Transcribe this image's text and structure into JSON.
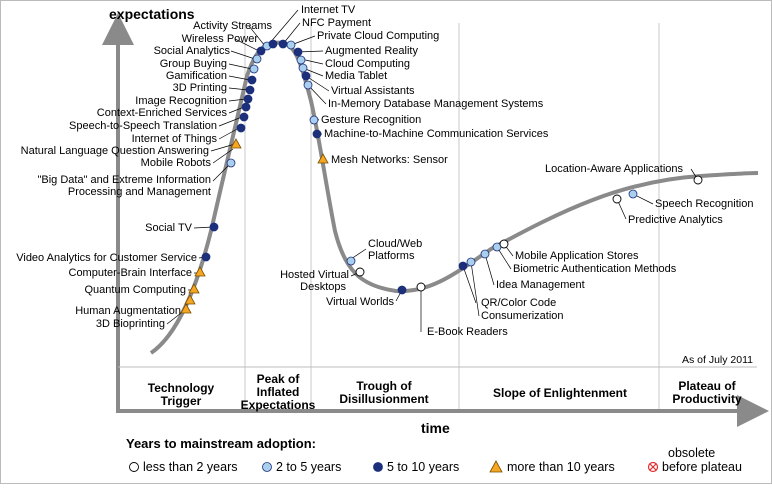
{
  "axes": {
    "y_title": "expectations",
    "x_title": "time"
  },
  "as_of": "As of July 2011",
  "phases": [
    {
      "lines": [
        "Technology",
        "Trigger"
      ]
    },
    {
      "lines": [
        "Peak of",
        "Inflated",
        "Expectations"
      ]
    },
    {
      "lines": [
        "Trough of",
        "Disillusionment"
      ]
    },
    {
      "lines": [
        "Slope of Enlightenment"
      ]
    },
    {
      "lines": [
        "Plateau of",
        "Productivity"
      ]
    }
  ],
  "legend": {
    "title": "Years to mainstream adoption:",
    "items": [
      {
        "label": "less than 2 years",
        "marker": "white-circle"
      },
      {
        "label": "2 to 5 years",
        "marker": "lightblue-circle"
      },
      {
        "label": "5 to 10 years",
        "marker": "darkblue-circle"
      },
      {
        "label": "more than 10 years",
        "marker": "orange-triangle"
      },
      {
        "label_lines": [
          "obsolete",
          "before plateau"
        ],
        "marker": "red-x-circle"
      }
    ]
  },
  "colors": {
    "curve": "#8a8a8a",
    "axis": "#8a8a8a",
    "less_than_2": "#ffffff",
    "two_to_5": "#a9cfee",
    "five_to_10": "#1c2f7a",
    "more_than_10": "#f5a623",
    "obsolete": "#e03030"
  },
  "technologies": [
    {
      "lines": [
        "Activity Streams"
      ],
      "years": "2 to 5 years"
    },
    {
      "lines": [
        "Wireless Power"
      ],
      "years": "5 to 10 years"
    },
    {
      "lines": [
        "Social Analytics"
      ],
      "years": "2 to 5 years"
    },
    {
      "lines": [
        "Group Buying"
      ],
      "years": "2 to 5 years"
    },
    {
      "lines": [
        "Gamification"
      ],
      "years": "5 to 10 years"
    },
    {
      "lines": [
        "3D Printing"
      ],
      "years": "5 to 10 years"
    },
    {
      "lines": [
        "Image Recognition"
      ],
      "years": "5 to 10 years"
    },
    {
      "lines": [
        "Context-Enriched Services"
      ],
      "years": "5 to 10 years"
    },
    {
      "lines": [
        "Speech-to-Speech Translation"
      ],
      "years": "5 to 10 years"
    },
    {
      "lines": [
        "Internet of Things"
      ],
      "years": "5 to 10 years"
    },
    {
      "lines": [
        "Natural Language Question Answering"
      ],
      "years": "more than 10 years"
    },
    {
      "lines": [
        "Mobile Robots"
      ],
      "years": "2 to 5 years"
    },
    {
      "lines": [
        "\"Big Data\" and Extreme Information",
        "Processing and Management"
      ],
      "years": "2 to 5 years"
    },
    {
      "lines": [
        "Social TV"
      ],
      "years": "5 to 10 years"
    },
    {
      "lines": [
        "Video Analytics for Customer Service"
      ],
      "years": "5 to 10 years"
    },
    {
      "lines": [
        "Computer-Brain Interface"
      ],
      "years": "more than 10 years"
    },
    {
      "lines": [
        "Quantum Computing"
      ],
      "years": "more than 10 years"
    },
    {
      "lines": [
        "Human Augmentation"
      ],
      "years": "more than 10 years"
    },
    {
      "lines": [
        "3D Bioprinting"
      ],
      "years": "more than 10 years"
    },
    {
      "lines": [
        "Internet TV"
      ],
      "years": "5 to 10 years"
    },
    {
      "lines": [
        "NFC Payment"
      ],
      "years": "5 to 10 years"
    },
    {
      "lines": [
        "Private Cloud Computing"
      ],
      "years": "2 to 5 years"
    },
    {
      "lines": [
        "Augmented Reality"
      ],
      "years": "5 to 10 years"
    },
    {
      "lines": [
        "Cloud Computing"
      ],
      "years": "2 to 5 years"
    },
    {
      "lines": [
        "Media Tablet"
      ],
      "years": "2 to 5 years"
    },
    {
      "lines": [
        "Virtual Assistants"
      ],
      "years": "5 to 10 years"
    },
    {
      "lines": [
        "In-Memory Database Management Systems"
      ],
      "years": "2 to 5 years"
    },
    {
      "lines": [
        "Gesture Recognition"
      ],
      "years": "2 to 5 years"
    },
    {
      "lines": [
        "Machine-to-Machine Communication Services"
      ],
      "years": "5 to 10 years"
    },
    {
      "lines": [
        "Mesh Networks: Sensor"
      ],
      "years": "more than 10 years"
    },
    {
      "lines": [
        "Cloud/Web",
        "Platforms"
      ],
      "years": "2 to 5 years"
    },
    {
      "lines": [
        "Hosted Virtual",
        "Desktops"
      ],
      "years": "less than 2 years"
    },
    {
      "lines": [
        "Virtual Worlds"
      ],
      "years": "5 to 10 years"
    },
    {
      "lines": [
        "E-Book Readers"
      ],
      "years": "less than 2 years"
    },
    {
      "lines": [
        "QR/Color Code"
      ],
      "years": "5 to 10 years"
    },
    {
      "lines": [
        "Consumerization"
      ],
      "years": "2 to 5 years"
    },
    {
      "lines": [
        "Idea Management"
      ],
      "years": "2 to 5 years"
    },
    {
      "lines": [
        "Biometric Authentication Methods"
      ],
      "years": "2 to 5 years"
    },
    {
      "lines": [
        "Mobile Application Stores"
      ],
      "years": "less than 2 years"
    },
    {
      "lines": [
        "Predictive Analytics"
      ],
      "years": "less than 2 years"
    },
    {
      "lines": [
        "Speech Recognition"
      ],
      "years": "2 to 5 years"
    },
    {
      "lines": [
        "Location-Aware Applications"
      ],
      "years": "less than 2 years"
    }
  ]
}
